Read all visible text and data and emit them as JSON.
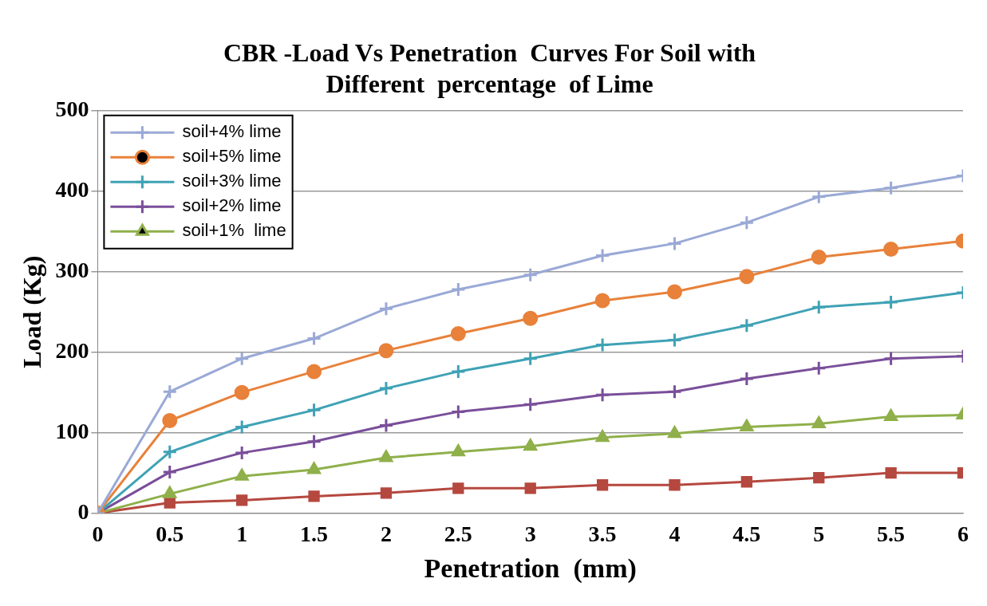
{
  "chart_data": {
    "type": "line",
    "title": "CBR -Load Vs Penetration  Curves For Soil with Different  percentage  of Lime",
    "xlabel": "Penetration  (mm)",
    "ylabel": "Load (Kg)",
    "x": [
      0,
      0.5,
      1,
      1.5,
      2,
      2.5,
      3,
      3.5,
      4,
      4.5,
      5,
      5.5,
      6
    ],
    "xlim": [
      0,
      6
    ],
    "xticks": [
      0,
      0.5,
      1,
      1.5,
      2,
      2.5,
      3,
      3.5,
      4,
      4.5,
      5,
      5.5,
      6
    ],
    "ylim": [
      0,
      500
    ],
    "yticks": [
      0,
      100,
      200,
      300,
      400,
      500
    ],
    "grid": "y",
    "legend": "top left",
    "line_style": "solid",
    "series": [
      {
        "name": "soil+4% lime",
        "color": "#9aa9d6",
        "marker": "cross",
        "values": [
          0,
          151,
          192,
          217,
          254,
          278,
          296,
          320,
          335,
          361,
          393,
          404,
          419
        ]
      },
      {
        "name": "soil+5% lime",
        "color": "#e8813a",
        "marker": "circle",
        "values": [
          0,
          115,
          150,
          176,
          202,
          223,
          242,
          264,
          275,
          294,
          318,
          328,
          338
        ]
      },
      {
        "name": "soil+3% lime",
        "color": "#3fa2b5",
        "marker": "cross",
        "values": [
          0,
          76,
          107,
          128,
          155,
          176,
          192,
          209,
          215,
          233,
          256,
          262,
          274
        ]
      },
      {
        "name": "soil+2% lime",
        "color": "#7a4f9a",
        "marker": "cross",
        "values": [
          0,
          51,
          75,
          89,
          109,
          126,
          135,
          147,
          151,
          167,
          180,
          192,
          195
        ]
      },
      {
        "name": "soil+1%  lime",
        "color": "#8fb04a",
        "marker": "triangle",
        "values": [
          0,
          24,
          46,
          54,
          69,
          76,
          83,
          94,
          99,
          107,
          111,
          120,
          122
        ]
      },
      {
        "color": "#b5483f",
        "marker": "square",
        "values": [
          0,
          13,
          16,
          21,
          25,
          31,
          31,
          35,
          35,
          39,
          44,
          50,
          50
        ]
      }
    ]
  }
}
